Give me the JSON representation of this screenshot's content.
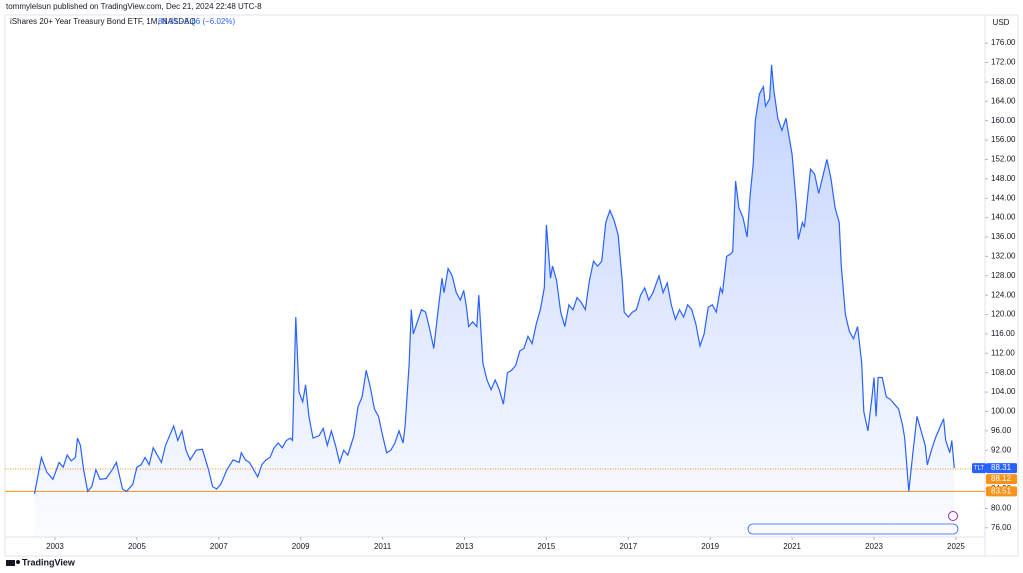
{
  "header": {
    "published": "tommylelsun published on TradingView.com, Dec 21, 2024 22:48 UTC-8"
  },
  "legend": {
    "symbol": "iShares 20+ Year Treasury Bond ETF, 1M, NASDAQ",
    "last": 88.31,
    "change": "−5.66 (−6.02%)"
  },
  "footer": {
    "brand": "TradingView"
  },
  "chart_data": {
    "type": "area",
    "y_axis_label": "USD",
    "xlim": [
      2001.78,
      2025.71
    ],
    "xticks": [
      2003,
      2005,
      2007,
      2009,
      2011,
      2013,
      2015,
      2017,
      2019,
      2021,
      2023,
      2025
    ],
    "ylim": [
      74.1,
      181.8
    ],
    "yticks": [
      {
        "value": 76,
        "label": "76.00"
      },
      {
        "value": 80,
        "label": "80.00"
      },
      {
        "value": 84,
        "label": "84.00"
      },
      {
        "value": 88,
        "label": "88.00"
      },
      {
        "value": 92,
        "label": "92.00"
      },
      {
        "value": 96,
        "label": "96.00"
      },
      {
        "value": 100,
        "label": "100.00"
      },
      {
        "value": 104,
        "label": "104.00"
      },
      {
        "value": 108,
        "label": "108.00"
      },
      {
        "value": 112,
        "label": "112.00"
      },
      {
        "value": 116,
        "label": "116.00"
      },
      {
        "value": 120,
        "label": "120.00"
      },
      {
        "value": 124,
        "label": "124.00"
      },
      {
        "value": 128,
        "label": "128.00"
      },
      {
        "value": 132,
        "label": "132.00"
      },
      {
        "value": 136,
        "label": "136.00"
      },
      {
        "value": 140,
        "label": "140.00"
      },
      {
        "value": 144,
        "label": "144.00"
      },
      {
        "value": 148,
        "label": "148.00"
      },
      {
        "value": 152,
        "label": "152.00"
      },
      {
        "value": 156,
        "label": "156.00"
      },
      {
        "value": 160,
        "label": "160.00"
      },
      {
        "value": 164,
        "label": "164.00"
      },
      {
        "value": 168,
        "label": "168.00"
      },
      {
        "value": 172,
        "label": "172.00"
      },
      {
        "value": 176,
        "label": "176.00"
      }
    ],
    "grid": false,
    "x": [
      2002.5,
      2002.67,
      2002.8,
      2002.95,
      2003.1,
      2003.2,
      2003.3,
      2003.4,
      2003.5,
      2003.55,
      2003.62,
      2003.7,
      2003.8,
      2003.9,
      2004.0,
      2004.1,
      2004.25,
      2004.4,
      2004.5,
      2004.65,
      2004.75,
      2004.9,
      2005.0,
      2005.1,
      2005.2,
      2005.3,
      2005.4,
      2005.5,
      2005.6,
      2005.7,
      2005.8,
      2005.9,
      2006.0,
      2006.1,
      2006.2,
      2006.3,
      2006.45,
      2006.6,
      2006.75,
      2006.85,
      2006.95,
      2007.05,
      2007.2,
      2007.35,
      2007.5,
      2007.55,
      2007.65,
      2007.75,
      2007.85,
      2007.95,
      2008.05,
      2008.15,
      2008.25,
      2008.35,
      2008.45,
      2008.55,
      2008.65,
      2008.75,
      2008.8,
      2008.88,
      2008.96,
      2009.05,
      2009.12,
      2009.2,
      2009.3,
      2009.45,
      2009.55,
      2009.65,
      2009.75,
      2009.85,
      2009.95,
      2010.05,
      2010.15,
      2010.3,
      2010.4,
      2010.5,
      2010.6,
      2010.7,
      2010.8,
      2010.9,
      2011.0,
      2011.1,
      2011.2,
      2011.3,
      2011.4,
      2011.5,
      2011.55,
      2011.65,
      2011.7,
      2011.75,
      2011.85,
      2011.95,
      2012.05,
      2012.15,
      2012.25,
      2012.35,
      2012.45,
      2012.5,
      2012.6,
      2012.7,
      2012.8,
      2012.9,
      2012.98,
      2013.05,
      2013.1,
      2013.2,
      2013.3,
      2013.35,
      2013.45,
      2013.55,
      2013.65,
      2013.75,
      2013.85,
      2013.95,
      2014.05,
      2014.15,
      2014.25,
      2014.35,
      2014.45,
      2014.55,
      2014.65,
      2014.75,
      2014.85,
      2014.95,
      2015.0,
      2015.1,
      2015.15,
      2015.25,
      2015.35,
      2015.45,
      2015.55,
      2015.65,
      2015.75,
      2015.85,
      2015.95,
      2016.05,
      2016.15,
      2016.25,
      2016.35,
      2016.45,
      2016.55,
      2016.65,
      2016.75,
      2016.85,
      2016.9,
      2017.0,
      2017.1,
      2017.2,
      2017.3,
      2017.4,
      2017.5,
      2017.6,
      2017.75,
      2017.85,
      2017.95,
      2018.05,
      2018.15,
      2018.25,
      2018.35,
      2018.45,
      2018.55,
      2018.65,
      2018.75,
      2018.85,
      2018.95,
      2019.05,
      2019.15,
      2019.25,
      2019.3,
      2019.4,
      2019.5,
      2019.55,
      2019.62,
      2019.7,
      2019.8,
      2019.9,
      2019.98,
      2020.05,
      2020.1,
      2020.2,
      2020.3,
      2020.35,
      2020.45,
      2020.5,
      2020.55,
      2020.65,
      2020.75,
      2020.85,
      2020.9,
      2021.0,
      2021.1,
      2021.15,
      2021.25,
      2021.3,
      2021.45,
      2021.55,
      2021.65,
      2021.75,
      2021.85,
      2021.95,
      2022.05,
      2022.15,
      2022.2,
      2022.3,
      2022.4,
      2022.5,
      2022.6,
      2022.7,
      2022.75,
      2022.85,
      2022.95,
      2023.0,
      2023.05,
      2023.1,
      2023.2,
      2023.3,
      2023.4,
      2023.5,
      2023.6,
      2023.7,
      2023.75,
      2023.85,
      2023.95,
      2024.05,
      2024.15,
      2024.25,
      2024.3,
      2024.4,
      2024.5,
      2024.6,
      2024.7,
      2024.75,
      2024.85,
      2024.9,
      2024.96
    ],
    "series": [
      {
        "name": "TLT",
        "color": "#2962ff",
        "values": [
          83,
          90.5,
          87.5,
          86,
          89.5,
          88.5,
          91,
          89.8,
          90.5,
          94.5,
          93,
          88,
          83.5,
          84.5,
          88,
          86,
          86.2,
          88,
          89.5,
          84,
          83.5,
          85,
          88.5,
          89,
          90.5,
          89,
          92.5,
          91,
          89.5,
          93,
          95,
          97,
          94,
          96,
          92,
          90,
          92,
          92.2,
          88,
          84.5,
          84,
          85,
          88,
          90,
          89.5,
          91.5,
          90,
          89.5,
          88,
          86.5,
          89,
          90,
          90.5,
          92.5,
          93.5,
          92.5,
          94,
          94.5,
          94,
          119.5,
          104,
          102,
          105.5,
          99,
          94.5,
          95,
          96.5,
          93,
          96,
          93,
          89.5,
          92,
          91,
          95,
          101,
          103,
          108.5,
          105,
          100.5,
          99,
          95,
          91.5,
          92,
          93.5,
          96,
          93.5,
          97,
          110,
          121,
          116,
          118.5,
          121,
          120.5,
          117,
          113,
          120.5,
          127.5,
          124.5,
          129.5,
          128,
          124.5,
          123,
          125,
          121.5,
          117.5,
          118.5,
          117.5,
          124,
          110,
          106.5,
          104.5,
          106.5,
          104.5,
          101.5,
          108,
          108.5,
          109.5,
          112.5,
          113,
          115.5,
          114,
          118,
          121,
          125.5,
          138.5,
          127.5,
          130,
          127,
          120.5,
          117.5,
          122,
          121,
          123.5,
          122.5,
          121,
          127,
          131,
          130,
          131,
          139,
          141.5,
          139.5,
          136.5,
          127,
          120.5,
          119.5,
          120.5,
          121,
          124,
          125.5,
          123,
          124.5,
          128,
          124.5,
          126.5,
          122,
          119,
          121,
          119.5,
          122,
          121,
          118,
          113.5,
          116,
          121.5,
          122,
          120.5,
          125.5,
          124.5,
          132,
          132.5,
          133,
          147.5,
          142,
          140,
          136,
          145,
          151,
          160,
          165.5,
          167,
          163,
          164.5,
          171.5,
          166.5,
          160.5,
          158,
          160.5,
          158,
          153,
          143,
          135.5,
          139,
          138,
          150,
          149,
          145,
          148.5,
          152,
          148,
          142,
          139,
          130,
          120,
          116.5,
          115,
          117.5,
          110,
          100,
          96,
          103,
          107,
          99,
          107,
          107,
          103,
          102.5,
          101.5,
          100.5,
          97,
          94.5,
          83.5,
          91.5,
          99,
          96,
          93,
          89,
          92,
          94.5,
          96.5,
          98.5,
          94,
          91.5,
          94,
          88.31
        ]
      }
    ],
    "price_lines": [
      {
        "value": 88.12,
        "color": "#f7931a",
        "style": "dotted"
      },
      {
        "value": 83.51,
        "color": "#f7931a",
        "style": "solid"
      }
    ]
  }
}
